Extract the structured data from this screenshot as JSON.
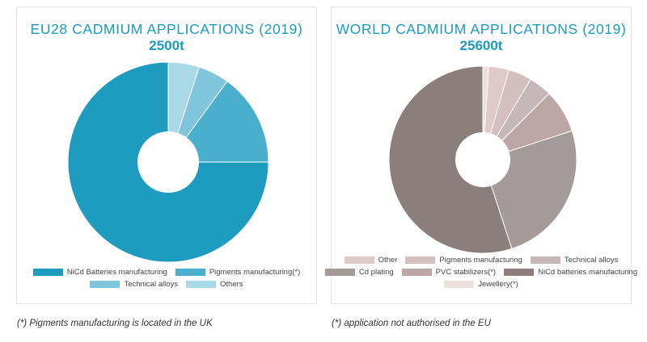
{
  "notes": {
    "left": "(*) Pigments manufacturing is located in the UK",
    "right": "(*) application not authorised in the EU"
  },
  "chart_data": [
    {
      "type": "pie",
      "title": "EU28 CADMIUM APPLICATIONS (2019)",
      "subtitle": "2500t",
      "donut": true,
      "slices": [
        {
          "label": "NiCd Batteries manufacturing",
          "value": 75,
          "color": "#1d9cbf"
        },
        {
          "label": "Pigments manufacturing(*)",
          "value": 15,
          "color": "#4aafcc"
        },
        {
          "label": "Technical alloys",
          "value": 5,
          "color": "#7fc6dc"
        },
        {
          "label": "Others",
          "value": 5,
          "color": "#a9d9e7"
        }
      ],
      "legend_rows": [
        [
          0,
          1
        ],
        [
          2,
          3
        ]
      ],
      "legend_placement": "bottom"
    },
    {
      "type": "pie",
      "title": "WORLD CADMIUM APPLICATIONS (2019)",
      "subtitle": "25600t",
      "donut": true,
      "slices": [
        {
          "label": "NiCd batteries manufacturing",
          "value": 55,
          "color": "#8b7f7d"
        },
        {
          "label": "Cd plating",
          "value": 25,
          "color": "#a49a99"
        },
        {
          "label": "PVC stabilizers(*)",
          "value": 7.5,
          "color": "#bda7a6"
        },
        {
          "label": "Technical alloys",
          "value": 4,
          "color": "#c6b8b8"
        },
        {
          "label": "Pigments manufacturing",
          "value": 4,
          "color": "#d3bec0"
        },
        {
          "label": "Other",
          "value": 3.5,
          "color": "#dfc9cb"
        },
        {
          "label": "Jewellery(*)",
          "value": 1,
          "color": "#ecdfe0"
        }
      ],
      "legend_rows": [
        [
          5,
          4,
          3
        ],
        [
          1,
          2,
          0
        ],
        [
          6
        ]
      ],
      "legend_placement": "bottom"
    }
  ]
}
